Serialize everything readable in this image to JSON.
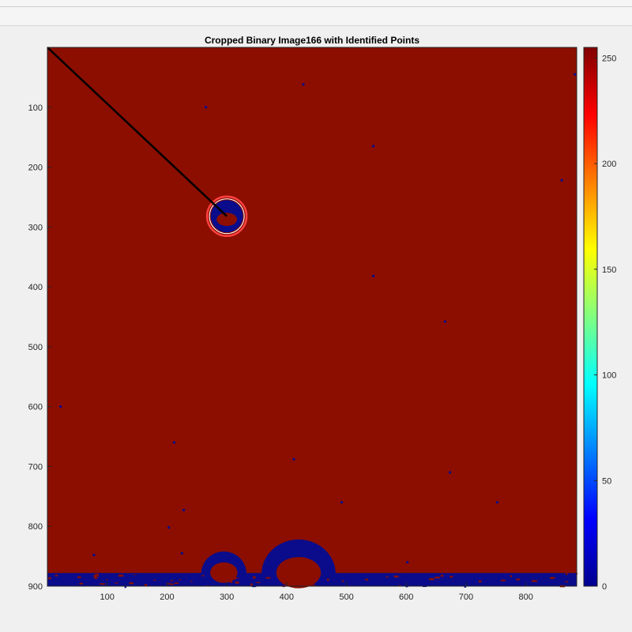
{
  "figure": {
    "title": "Cropped Binary Image166 with Identified Points"
  },
  "chart_data": {
    "type": "heatmap",
    "title": "Cropped Binary Image166 with Identified Points",
    "xlabel": "",
    "ylabel": "",
    "xlim": [
      0,
      885
    ],
    "ylim": [
      0,
      900
    ],
    "y_direction": "reversed",
    "xticks": [
      100,
      200,
      300,
      400,
      500,
      600,
      700,
      800
    ],
    "yticks": [
      100,
      200,
      300,
      400,
      500,
      600,
      700,
      800,
      900
    ],
    "colormap": "jet",
    "clim": [
      0,
      255
    ],
    "colorbar_ticks": [
      0,
      50,
      100,
      150,
      200,
      250
    ],
    "background_value": 255,
    "foreground_value": 0,
    "colors": {
      "background": "#8b0e00",
      "foreground": "#0a0c8c",
      "line": "#000000",
      "circle": "#ff4040"
    },
    "identified_point": {
      "x": 300,
      "y": 282
    },
    "line_segment": {
      "from": [
        0,
        0
      ],
      "to": [
        300,
        282
      ]
    },
    "circle": {
      "center": [
        300,
        282
      ],
      "radius": 33
    },
    "bottom_blobs": [
      {
        "center_x": 295,
        "top_y": 842
      },
      {
        "center_x": 420,
        "top_y": 822
      }
    ]
  }
}
